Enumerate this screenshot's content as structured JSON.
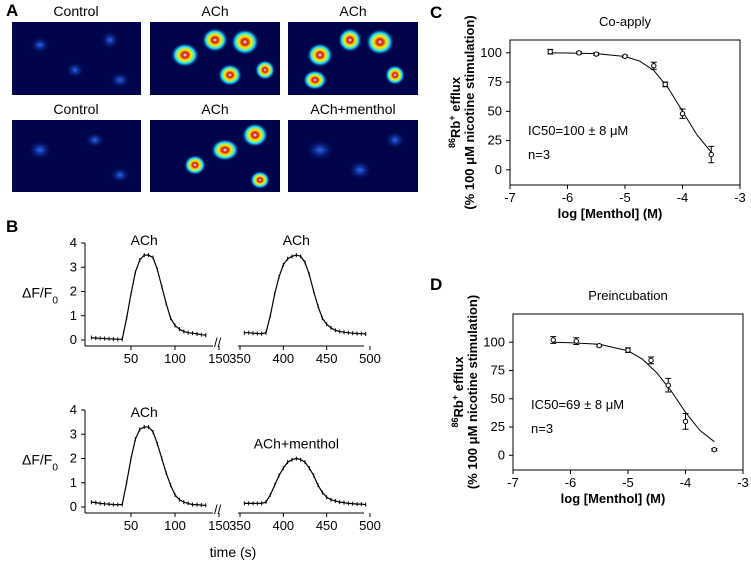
{
  "panel_a": {
    "label": "A",
    "captions": [
      [
        "Control",
        "ACh",
        "ACh"
      ],
      [
        "Control",
        "ACh",
        "ACh+menthol"
      ]
    ]
  },
  "panel_b": {
    "label": "B",
    "xlabel": "time (s)"
  },
  "panel_c": {
    "label": "C"
  },
  "panel_d": {
    "label": "D"
  },
  "chart_data": [
    {
      "type": "line",
      "annotation": "ACh",
      "ylabel": [
        {
          "text": "ΔF/F"
        },
        {
          "text": "0",
          "sub": true
        }
      ],
      "x": [
        5,
        10,
        15,
        20,
        25,
        30,
        35,
        40,
        45,
        50,
        55,
        60,
        65,
        70,
        75,
        80,
        85,
        90,
        95,
        100,
        105,
        110,
        115,
        120,
        125,
        130,
        135
      ],
      "values": [
        0.1,
        0.08,
        0.07,
        0.06,
        0.05,
        0.04,
        0.03,
        0.03,
        0.9,
        1.9,
        2.8,
        3.3,
        3.5,
        3.5,
        3.4,
        2.9,
        2.2,
        1.5,
        0.9,
        0.6,
        0.45,
        0.35,
        0.3,
        0.28,
        0.25,
        0.22,
        0.2
      ],
      "color": "#000000",
      "xlim": [
        0,
        150
      ],
      "xticks": [
        50,
        100,
        150
      ],
      "ylim": [
        0,
        4
      ],
      "yticks": [
        0,
        1,
        2,
        3,
        4
      ]
    },
    {
      "type": "line",
      "annotation": "ACh",
      "x": [
        355,
        360,
        365,
        370,
        375,
        380,
        385,
        390,
        395,
        400,
        405,
        410,
        415,
        420,
        425,
        430,
        435,
        440,
        445,
        450,
        455,
        460,
        465,
        470,
        475,
        480,
        485,
        490,
        495
      ],
      "values": [
        0.3,
        0.3,
        0.28,
        0.27,
        0.26,
        0.3,
        1.0,
        1.9,
        2.6,
        3.1,
        3.35,
        3.45,
        3.5,
        3.45,
        3.2,
        2.7,
        2.0,
        1.4,
        0.9,
        0.65,
        0.5,
        0.4,
        0.35,
        0.32,
        0.3,
        0.28,
        0.27,
        0.26,
        0.25
      ],
      "color": "#000000",
      "xlim": [
        350,
        500
      ],
      "xticks": [
        350,
        400,
        450,
        500
      ],
      "ylim": [
        0,
        4
      ]
    },
    {
      "type": "line",
      "annotation": "ACh",
      "ylabel": [
        {
          "text": "ΔF/F"
        },
        {
          "text": "0",
          "sub": true
        }
      ],
      "x": [
        5,
        10,
        15,
        20,
        25,
        30,
        35,
        40,
        45,
        50,
        55,
        60,
        65,
        70,
        75,
        80,
        85,
        90,
        95,
        100,
        105,
        110,
        115,
        120,
        125,
        130,
        135
      ],
      "values": [
        0.2,
        0.18,
        0.15,
        0.13,
        0.12,
        0.1,
        0.1,
        0.1,
        1.0,
        2.0,
        2.8,
        3.2,
        3.3,
        3.3,
        3.1,
        2.6,
        2.0,
        1.4,
        0.9,
        0.5,
        0.3,
        0.2,
        0.15,
        0.1,
        0.1,
        0.08,
        0.07
      ],
      "color": "#000000",
      "xlim": [
        0,
        150
      ],
      "xticks": [
        50,
        100,
        150
      ],
      "ylim": [
        0,
        4
      ],
      "yticks": [
        0,
        1,
        2,
        3,
        4
      ]
    },
    {
      "type": "line",
      "annotation": "ACh+menthol",
      "x": [
        355,
        360,
        365,
        370,
        375,
        380,
        385,
        390,
        395,
        400,
        405,
        410,
        415,
        420,
        425,
        430,
        435,
        440,
        445,
        450,
        455,
        460,
        465,
        470,
        475,
        480,
        485,
        490,
        495
      ],
      "values": [
        0.15,
        0.15,
        0.15,
        0.15,
        0.15,
        0.2,
        0.5,
        0.9,
        1.3,
        1.6,
        1.85,
        1.95,
        2.0,
        1.95,
        1.85,
        1.6,
        1.3,
        0.9,
        0.6,
        0.4,
        0.3,
        0.25,
        0.2,
        0.18,
        0.15,
        0.14,
        0.12,
        0.12,
        0.1
      ],
      "color": "#000000",
      "xlim": [
        350,
        500
      ],
      "xticks": [
        350,
        400,
        450,
        500
      ],
      "ylim": [
        0,
        4
      ]
    },
    {
      "type": "scatter",
      "title": "Co-apply",
      "annotation": [
        "IC50=100 ± 8 μM",
        "n=3"
      ],
      "ylabel": [
        {
          "text": "86",
          "sup": true
        },
        {
          "text": "Rb"
        },
        {
          "text": "+",
          "sup": true
        },
        {
          "text": " efflux"
        }
      ],
      "ylabel2": "(% 100 μM nicotine stimulation)",
      "xlabel": "log [Menthol]   (M)",
      "x": [
        -6.3,
        -5.8,
        -5.5,
        -5,
        -4.5,
        -4.3,
        -4,
        -3.5
      ],
      "values": [
        101,
        100,
        99,
        97,
        89,
        73,
        48,
        13
      ],
      "errors": [
        2,
        1,
        1,
        1,
        3,
        2,
        4,
        7
      ],
      "fit_x": [
        -6.3,
        -6,
        -5.5,
        -5,
        -4.75,
        -4.5,
        -4.25,
        -4,
        -3.75,
        -3.5
      ],
      "fit_values": [
        100,
        99.9,
        99.4,
        96.9,
        93,
        85,
        70,
        50,
        30,
        15
      ],
      "color": "#000000",
      "xlim": [
        -7,
        -3
      ],
      "xticks": [
        -7,
        -6,
        -5,
        -4,
        -3
      ],
      "ylim": [
        -13,
        111
      ],
      "yticks": [
        0,
        25,
        50,
        75,
        100
      ]
    },
    {
      "type": "scatter",
      "title": "Preincubation",
      "annotation": [
        "IC50=69 ± 8 μM",
        "n=3"
      ],
      "ylabel": [
        {
          "text": "86",
          "sup": true
        },
        {
          "text": "Rb"
        },
        {
          "text": "+",
          "sup": true
        },
        {
          "text": " efflux"
        }
      ],
      "ylabel2": "(% 100 μM nicotine stimulation)",
      "xlabel": "log [Menthol]   (M)",
      "x": [
        -6.3,
        -5.9,
        -5.5,
        -5,
        -4.6,
        -4.3,
        -4,
        -3.5
      ],
      "values": [
        102,
        101,
        97,
        93,
        84,
        62,
        30,
        5
      ],
      "errors": [
        3,
        3,
        1,
        2,
        3,
        6,
        7,
        1
      ],
      "fit_x": [
        -6.3,
        -6,
        -5.5,
        -5,
        -4.75,
        -4.5,
        -4.25,
        -4,
        -3.75,
        -3.5
      ],
      "fit_values": [
        100,
        99.6,
        98.2,
        92.5,
        85,
        73,
        57,
        38,
        22,
        12
      ],
      "color": "#000000",
      "xlim": [
        -7,
        -3
      ],
      "xticks": [
        -7,
        -6,
        -5,
        -4,
        -3
      ],
      "ylim": [
        -13,
        125
      ],
      "yticks": [
        0,
        25,
        50,
        75,
        100
      ]
    }
  ]
}
